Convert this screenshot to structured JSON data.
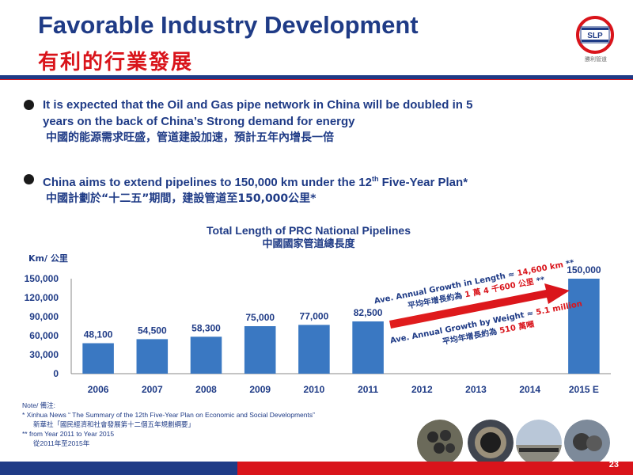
{
  "header": {
    "title_en": "Favorable Industry Development",
    "title_cn": "有利的行業發展",
    "logo_text": "SLP",
    "logo_caption": "勝利管道"
  },
  "bullets": [
    {
      "line1": "It is expected that the Oil and Gas pipe network in China will be doubled in  5",
      "line2": "years on the back of China’s Strong demand for energy",
      "cn": "中國的能源需求旺盛，管道建設加速，預計五年內增長一倍"
    },
    {
      "line1": "China aims to extend pipelines to 150,000 km under the 12th Five-Year Plan*",
      "cn": "中國計劃於“十二五”期間，建設管道至150,000公里*"
    }
  ],
  "chart_data": {
    "type": "bar",
    "title": "Total Length of PRC National Pipelines",
    "subtitle": "中國國家管道總長度",
    "ylabel": "Km/ 公里",
    "categories": [
      "2006",
      "2007",
      "2008",
      "2009",
      "2010",
      "2011",
      "2012",
      "2013",
      "2014",
      "2015 E"
    ],
    "values": [
      48100,
      54500,
      58300,
      75000,
      77000,
      82500,
      null,
      null,
      null,
      150000
    ],
    "value_labels": [
      "48,100",
      "54,500",
      "58,300",
      "75,000",
      "77,000",
      "82,500",
      "",
      "",
      "",
      "150,000"
    ],
    "ylim": [
      0,
      150000
    ],
    "yticks": [
      0,
      30000,
      60000,
      90000,
      120000,
      150000
    ],
    "ytick_labels": [
      "0",
      "30,000",
      "60,000",
      "90,000",
      "120,000",
      "150,000"
    ],
    "bar_color": "#3a78c2",
    "annotations": {
      "length_en_prefix": "Ave. Annual Growth  in Length ≈ ",
      "length_en_value": "14,600 km",
      "length_en_suffix": " **",
      "length_cn_prefix": "平均年增長約為 ",
      "length_cn_value": "1 萬 4 千600 公里",
      "length_cn_suffix": " **",
      "weight_en_prefix": "Ave. Annual Growth by Weight ≈ ",
      "weight_en_value": "5.1 million",
      "weight_cn_prefix": "平均年增長約為 ",
      "weight_cn_value": "510 萬噸"
    }
  },
  "notes": {
    "label": "Note/ 備注:",
    "n1": "*    Xinhua News “ The Summary of the 12th Five-Year Plan on Economic and Social Developments”",
    "n1_cn": "新華社「國民經濟和社會發展第十二個五年規劃綱要」",
    "n2": "** from Year 2011 to Year 2015",
    "n2_cn": "從2011年至2015年"
  },
  "footer": {
    "page_number": "23"
  },
  "colors": {
    "brand_blue": "#1f3b86",
    "brand_red": "#d9141b"
  }
}
